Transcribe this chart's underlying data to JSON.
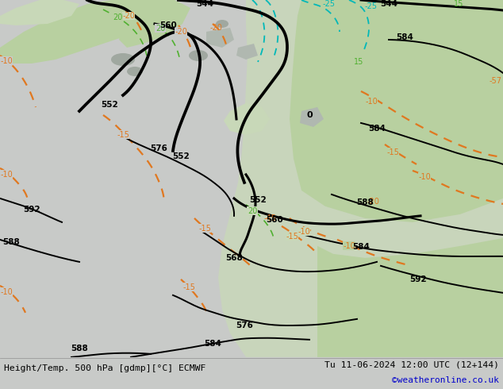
{
  "title_left": "Height/Temp. 500 hPa [gdmp][°C] ECMWF",
  "title_right": "Tu 11-06-2024 12:00 UTC (12+144)",
  "credit": "©weatheronline.co.uk",
  "bg_gray": "#c8cac8",
  "bg_green_light": "#c8d8b8",
  "bg_green_med": "#b8d0a0",
  "land_gray": "#a8a8a8",
  "bottom_bar_color": "#e0e0e0",
  "bottom_text_color": "#000000",
  "credit_color": "#0000cc",
  "black_contour": "#000000",
  "orange_contour": "#e07820",
  "green_contour": "#50b030",
  "cyan_contour": "#00b8b8",
  "figsize": [
    6.34,
    4.9
  ],
  "dpi": 100
}
